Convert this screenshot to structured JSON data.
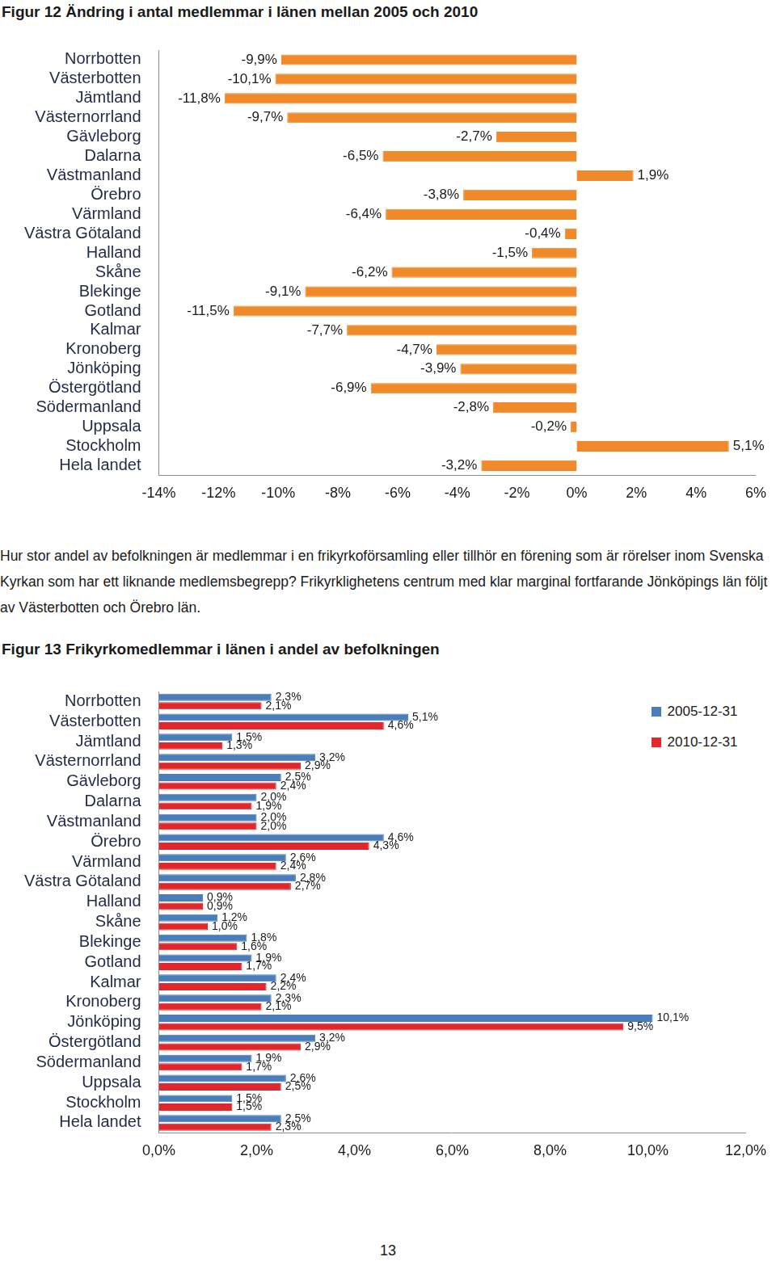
{
  "chart_data": [
    {
      "type": "bar",
      "orientation": "horizontal",
      "title": "Figur 12 Ändring i antal medlemmar i länen mellan 2005 och 2010",
      "categories": [
        "Norrbotten",
        "Västerbotten",
        "Jämtland",
        "Västernorrland",
        "Gävleborg",
        "Dalarna",
        "Västmanland",
        "Örebro",
        "Värmland",
        "Västra Götaland",
        "Halland",
        "Skåne",
        "Blekinge",
        "Gotland",
        "Kalmar",
        "Kronoberg",
        "Jönköping",
        "Östergötland",
        "Södermanland",
        "Uppsala",
        "Stockholm",
        "Hela landet"
      ],
      "values": [
        -9.9,
        -10.1,
        -11.8,
        -9.7,
        -2.7,
        -6.5,
        1.9,
        -3.8,
        -6.4,
        -0.4,
        -1.5,
        -6.2,
        -9.1,
        -11.5,
        -7.7,
        -4.7,
        -3.9,
        -6.9,
        -2.8,
        -0.2,
        5.1,
        -3.2
      ],
      "value_labels": [
        "-9,9%",
        "-10,1%",
        "-11,8%",
        "-9,7%",
        "-2,7%",
        "-6,5%",
        "1,9%",
        "-3,8%",
        "-6,4%",
        "-0,4%",
        "-1,5%",
        "-6,2%",
        "-9,1%",
        "-11,5%",
        "-7,7%",
        "-4,7%",
        "-3,9%",
        "-6,9%",
        "-2,8%",
        "-0,2%",
        "5,1%",
        "-3,2%"
      ],
      "color": "#f0892a",
      "data_labels": true,
      "grid": false,
      "xlim": [
        -14,
        6
      ],
      "xticks": [
        {
          "value": -14,
          "label": "-14%"
        },
        {
          "value": -12,
          "label": "-12%"
        },
        {
          "value": -10,
          "label": "-10%"
        },
        {
          "value": -8,
          "label": "-8%"
        },
        {
          "value": -6,
          "label": "-6%"
        },
        {
          "value": -4,
          "label": "-4%"
        },
        {
          "value": -2,
          "label": "-2%"
        },
        {
          "value": 0,
          "label": "0%"
        },
        {
          "value": 2,
          "label": "2%"
        },
        {
          "value": 4,
          "label": "4%"
        },
        {
          "value": 6,
          "label": "6%"
        }
      ]
    },
    {
      "type": "bar",
      "orientation": "horizontal",
      "title": "Figur 13 Frikyrkomedlemmar i länen i andel av befolkningen",
      "categories": [
        "Norrbotten",
        "Västerbotten",
        "Jämtland",
        "Västernorrland",
        "Gävleborg",
        "Dalarna",
        "Västmanland",
        "Örebro",
        "Värmland",
        "Västra Götaland",
        "Halland",
        "Skåne",
        "Blekinge",
        "Gotland",
        "Kalmar",
        "Kronoberg",
        "Jönköping",
        "Östergötland",
        "Södermanland",
        "Uppsala",
        "Stockholm",
        "Hela landet"
      ],
      "series": [
        {
          "name": "2005-12-31",
          "color": "#4a7ebb",
          "values": [
            2.3,
            5.1,
            1.5,
            3.2,
            2.5,
            2.0,
            2.0,
            4.6,
            2.6,
            2.8,
            0.9,
            1.2,
            1.8,
            1.9,
            2.4,
            2.3,
            10.1,
            3.2,
            1.9,
            2.6,
            1.5,
            2.5
          ],
          "value_labels": [
            "2,3%",
            "5,1%",
            "1,5%",
            "3,2%",
            "2,5%",
            "2,0%",
            "2,0%",
            "4,6%",
            "2,6%",
            "2,8%",
            "0,9%",
            "1,2%",
            "1,8%",
            "1,9%",
            "2,4%",
            "2,3%",
            "10,1%",
            "3,2%",
            "1,9%",
            "2,6%",
            "1,5%",
            "2,5%"
          ]
        },
        {
          "name": "2010-12-31",
          "color": "#e0282c",
          "values": [
            2.1,
            4.6,
            1.3,
            2.9,
            2.4,
            1.9,
            2.0,
            4.3,
            2.4,
            2.7,
            0.9,
            1.0,
            1.6,
            1.7,
            2.2,
            2.1,
            9.5,
            2.9,
            1.7,
            2.5,
            1.5,
            2.3
          ],
          "value_labels": [
            "2,1%",
            "4,6%",
            "1,3%",
            "2,9%",
            "2,4%",
            "1,9%",
            "2,0%",
            "4,3%",
            "2,4%",
            "2,7%",
            "0,9%",
            "1,0%",
            "1,6%",
            "1,7%",
            "2,2%",
            "2,1%",
            "9,5%",
            "2,9%",
            "1,7%",
            "2,5%",
            "1,5%",
            "2,3%"
          ]
        }
      ],
      "data_labels": true,
      "grid": false,
      "legend": "upper right",
      "xlim": [
        0,
        12
      ],
      "xticks": [
        {
          "value": 0,
          "label": "0,0%"
        },
        {
          "value": 2,
          "label": "2,0%"
        },
        {
          "value": 4,
          "label": "4,0%"
        },
        {
          "value": 6,
          "label": "6,0%"
        },
        {
          "value": 8,
          "label": "8,0%"
        },
        {
          "value": 10,
          "label": "10,0%"
        },
        {
          "value": 12,
          "label": "12,0%"
        }
      ]
    }
  ],
  "paragraph": "Hur stor andel av befolkningen är medlemmar i en frikyrkoförsamling eller tillhör en förening som är rörelser inom Svenska Kyrkan som har ett liknande medlemsbegrepp? Frikyrklighetens centrum med klar marginal fortfarande Jönköpings län följt av Västerbotten och Örebro län.",
  "page_number": "13"
}
